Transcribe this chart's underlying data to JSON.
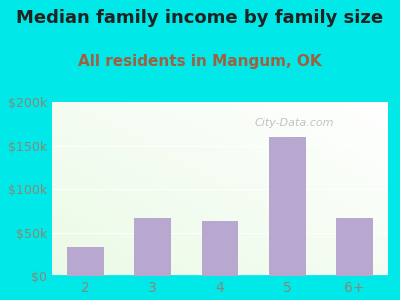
{
  "title": "Median family income by family size",
  "subtitle": "All residents in Mangum, OK",
  "categories": [
    "2",
    "3",
    "4",
    "5",
    "6+"
  ],
  "values": [
    33000,
    67000,
    63000,
    160000,
    67000
  ],
  "bar_color": "#b8a8d0",
  "background_outer": "#00e8e8",
  "title_color": "#222222",
  "subtitle_color": "#a06040",
  "tick_color": "#888877",
  "ylim": [
    0,
    200000
  ],
  "yticks": [
    0,
    50000,
    100000,
    150000,
    200000
  ],
  "ytick_labels": [
    "$0",
    "$50k",
    "$100k",
    "$150k",
    "$200k"
  ],
  "title_fontsize": 13,
  "subtitle_fontsize": 11,
  "watermark": "City-Data.com"
}
